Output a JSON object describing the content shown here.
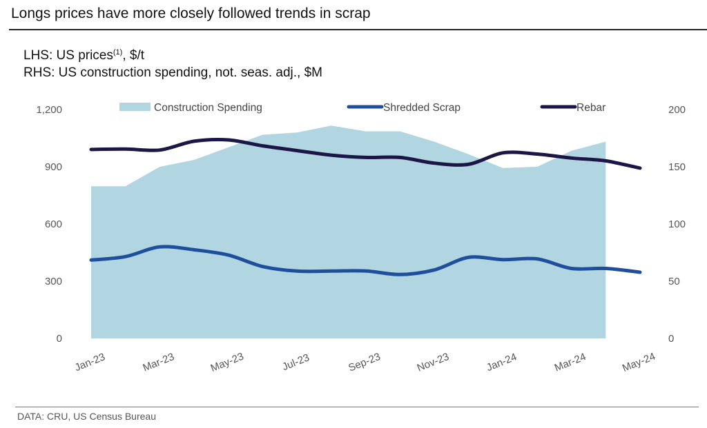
{
  "header": {
    "title": "Longs prices have more closely followed trends in scrap",
    "subtitle_lhs_prefix": "LHS: US prices",
    "subtitle_lhs_sup": "(1)",
    "subtitle_lhs_suffix": ", $/t",
    "subtitle_rhs": "RHS: US construction spending, not. seas. adj., $M"
  },
  "footer": {
    "source": "DATA:  CRU, US Census Bureau"
  },
  "colors": {
    "construction": "#b1d6e2",
    "scrap": "#1f4e9c",
    "rebar": "#1b1646",
    "axis_text": "#555555"
  },
  "chart_data": {
    "type": "line",
    "title": "Longs prices have more closely followed trends in scrap",
    "xlabel": "",
    "ylabel": "US prices, $/t",
    "y2label": "US construction spending, not. seas. adj., $M",
    "x": [
      "Jan-23",
      "Feb-23",
      "Mar-23",
      "Apr-23",
      "May-23",
      "Jun-23",
      "Jul-23",
      "Aug-23",
      "Sep-23",
      "Oct-23",
      "Nov-23",
      "Dec-23",
      "Jan-24",
      "Feb-24",
      "Mar-24",
      "Apr-24",
      "May-24"
    ],
    "x_tick_labels": [
      "Jan-23",
      "Mar-23",
      "May-23",
      "Jul-23",
      "Sep-23",
      "Nov-23",
      "Jan-24",
      "Mar-24",
      "May-24"
    ],
    "ylim": [
      0,
      1200
    ],
    "y_ticks": [
      0,
      300,
      600,
      900,
      1200
    ],
    "y_tick_labels": [
      "0",
      "300",
      "600",
      "900",
      "1,200"
    ],
    "y2lim": [
      0,
      200
    ],
    "y2_ticks": [
      0,
      50,
      100,
      150,
      200
    ],
    "y2_tick_labels": [
      "0",
      "50",
      "100",
      "150",
      "200"
    ],
    "grid": false,
    "legend_position": "top",
    "series": [
      {
        "name": "Construction Spending",
        "kind": "area",
        "axis": "right",
        "values": [
          133,
          133,
          150,
          156,
          167,
          178,
          180,
          186,
          181,
          181,
          172,
          161,
          149,
          150,
          164,
          172,
          null
        ]
      },
      {
        "name": "Shredded Scrap",
        "kind": "line",
        "axis": "left",
        "values": [
          411,
          429,
          480,
          465,
          437,
          377,
          353,
          353,
          354,
          335,
          359,
          425,
          413,
          417,
          367,
          367,
          347
        ]
      },
      {
        "name": "Rebar",
        "kind": "line",
        "axis": "left",
        "values": [
          991,
          993,
          988,
          1034,
          1041,
          1010,
          985,
          961,
          949,
          949,
          919,
          913,
          973,
          967,
          946,
          931,
          893
        ]
      }
    ]
  }
}
